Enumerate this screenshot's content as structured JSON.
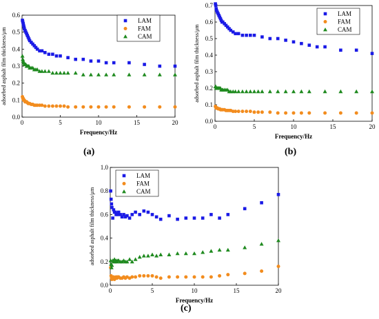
{
  "caption_labels": [
    "(a)",
    "(b)",
    "(c)"
  ],
  "chart_data": [
    {
      "type": "scatter",
      "xlabel": "Frequency/Hz",
      "ylabel": "adsorbed asphalt film thickness/μm",
      "xlim": [
        0,
        20
      ],
      "ylim": [
        0,
        0.6
      ],
      "xticks": [
        0,
        5,
        10,
        15,
        20
      ],
      "yticks": [
        0.0,
        0.1,
        0.2,
        0.3,
        0.4,
        0.5,
        0.6
      ],
      "grid": false,
      "legend_position": "top-right",
      "series": [
        {
          "name": "LAM",
          "color": "#1a1ae6",
          "marker": "square",
          "x": [
            0.05,
            0.1,
            0.15,
            0.2,
            0.25,
            0.3,
            0.4,
            0.5,
            0.6,
            0.7,
            0.8,
            0.9,
            1.0,
            1.2,
            1.4,
            1.6,
            1.8,
            2.0,
            2.3,
            2.6,
            3.0,
            3.5,
            4.0,
            4.5,
            5.0,
            6.0,
            7.0,
            8.0,
            9.0,
            10.0,
            11.0,
            12.0,
            14.0,
            16.0,
            18.0,
            20.0
          ],
          "y": [
            0.57,
            0.56,
            0.55,
            0.54,
            0.53,
            0.52,
            0.51,
            0.5,
            0.49,
            0.48,
            0.47,
            0.46,
            0.45,
            0.44,
            0.43,
            0.42,
            0.41,
            0.4,
            0.39,
            0.39,
            0.38,
            0.37,
            0.37,
            0.36,
            0.36,
            0.35,
            0.34,
            0.34,
            0.33,
            0.33,
            0.32,
            0.32,
            0.32,
            0.31,
            0.3,
            0.3
          ]
        },
        {
          "name": "FAM",
          "color": "#f28c1e",
          "marker": "circle",
          "x": [
            0.05,
            0.1,
            0.15,
            0.2,
            0.3,
            0.4,
            0.5,
            0.6,
            0.7,
            0.8,
            0.9,
            1.0,
            1.2,
            1.4,
            1.6,
            1.8,
            2.0,
            2.3,
            2.6,
            3.0,
            3.5,
            4.0,
            4.5,
            5.0,
            5.5,
            6.0,
            7.0,
            8.0,
            9.0,
            10.0,
            11.0,
            12.0,
            14.0,
            16.0,
            18.0,
            20.0
          ],
          "y": [
            0.12,
            0.11,
            0.11,
            0.1,
            0.1,
            0.09,
            0.09,
            0.09,
            0.085,
            0.08,
            0.08,
            0.08,
            0.075,
            0.075,
            0.07,
            0.07,
            0.07,
            0.07,
            0.07,
            0.065,
            0.065,
            0.065,
            0.065,
            0.065,
            0.065,
            0.06,
            0.06,
            0.06,
            0.06,
            0.06,
            0.06,
            0.06,
            0.06,
            0.06,
            0.06,
            0.06
          ]
        },
        {
          "name": "CAM",
          "color": "#1f8a1f",
          "marker": "triangle",
          "x": [
            0.05,
            0.1,
            0.15,
            0.2,
            0.3,
            0.4,
            0.5,
            0.6,
            0.7,
            0.8,
            0.9,
            1.0,
            1.2,
            1.4,
            1.6,
            1.8,
            2.0,
            2.3,
            2.6,
            3.0,
            3.5,
            4.0,
            4.5,
            5.0,
            5.5,
            6.0,
            7.0,
            8.0,
            9.0,
            10.0,
            11.0,
            12.0,
            14.0,
            16.0,
            18.0,
            20.0
          ],
          "y": [
            0.36,
            0.34,
            0.33,
            0.32,
            0.31,
            0.31,
            0.31,
            0.3,
            0.3,
            0.3,
            0.3,
            0.29,
            0.29,
            0.29,
            0.28,
            0.28,
            0.28,
            0.27,
            0.27,
            0.27,
            0.27,
            0.26,
            0.26,
            0.26,
            0.26,
            0.26,
            0.26,
            0.25,
            0.25,
            0.25,
            0.25,
            0.25,
            0.25,
            0.25,
            0.25,
            0.25
          ]
        }
      ]
    },
    {
      "type": "scatter",
      "xlabel": "Frequency/Hz",
      "ylabel": "adsorbed asphalt film thickness/μm",
      "xlim": [
        0,
        20
      ],
      "ylim": [
        0,
        0.7
      ],
      "xticks": [
        0,
        5,
        10,
        15,
        20
      ],
      "yticks": [
        0.0,
        0.1,
        0.2,
        0.3,
        0.4,
        0.5,
        0.6,
        0.7
      ],
      "grid": false,
      "legend_position": "top-right",
      "series": [
        {
          "name": "LAM",
          "color": "#1a1ae6",
          "marker": "square",
          "x": [
            0.05,
            0.1,
            0.15,
            0.2,
            0.3,
            0.4,
            0.5,
            0.6,
            0.7,
            0.8,
            0.9,
            1.0,
            1.2,
            1.4,
            1.6,
            1.8,
            2.0,
            2.3,
            2.6,
            3.0,
            3.5,
            4.0,
            4.5,
            5.0,
            6.0,
            7.0,
            8.0,
            9.0,
            10.0,
            11.0,
            12.0,
            13.0,
            14.0,
            16.0,
            18.0,
            20.0
          ],
          "y": [
            0.71,
            0.7,
            0.68,
            0.67,
            0.66,
            0.65,
            0.64,
            0.63,
            0.62,
            0.61,
            0.6,
            0.6,
            0.59,
            0.58,
            0.57,
            0.56,
            0.55,
            0.54,
            0.53,
            0.53,
            0.52,
            0.52,
            0.52,
            0.52,
            0.51,
            0.5,
            0.5,
            0.49,
            0.48,
            0.47,
            0.46,
            0.45,
            0.45,
            0.43,
            0.43,
            0.41
          ]
        },
        {
          "name": "FAM",
          "color": "#f28c1e",
          "marker": "circle",
          "x": [
            0.05,
            0.1,
            0.15,
            0.2,
            0.3,
            0.4,
            0.5,
            0.6,
            0.7,
            0.8,
            0.9,
            1.0,
            1.2,
            1.4,
            1.6,
            1.8,
            2.0,
            2.3,
            2.6,
            3.0,
            3.5,
            4.0,
            4.5,
            5.0,
            5.5,
            6.0,
            7.0,
            8.0,
            9.0,
            10.0,
            11.0,
            12.0,
            14.0,
            16.0,
            18.0,
            20.0
          ],
          "y": [
            0.09,
            0.085,
            0.08,
            0.08,
            0.08,
            0.075,
            0.075,
            0.075,
            0.07,
            0.07,
            0.07,
            0.07,
            0.07,
            0.065,
            0.065,
            0.065,
            0.065,
            0.06,
            0.06,
            0.06,
            0.06,
            0.06,
            0.06,
            0.055,
            0.055,
            0.055,
            0.055,
            0.05,
            0.05,
            0.05,
            0.05,
            0.05,
            0.05,
            0.05,
            0.05,
            0.05
          ]
        },
        {
          "name": "CAM",
          "color": "#1f8a1f",
          "marker": "triangle",
          "x": [
            0.05,
            0.1,
            0.15,
            0.2,
            0.3,
            0.4,
            0.5,
            0.6,
            0.7,
            0.8,
            0.9,
            1.0,
            1.2,
            1.4,
            1.6,
            1.8,
            2.0,
            2.3,
            2.6,
            3.0,
            3.5,
            4.0,
            4.5,
            5.0,
            5.5,
            6.0,
            7.0,
            8.0,
            9.0,
            10.0,
            11.0,
            12.0,
            14.0,
            16.0,
            18.0,
            20.0
          ],
          "y": [
            0.21,
            0.21,
            0.2,
            0.2,
            0.2,
            0.2,
            0.2,
            0.2,
            0.2,
            0.19,
            0.19,
            0.19,
            0.19,
            0.19,
            0.19,
            0.18,
            0.18,
            0.18,
            0.18,
            0.18,
            0.18,
            0.18,
            0.18,
            0.18,
            0.18,
            0.18,
            0.18,
            0.18,
            0.18,
            0.18,
            0.18,
            0.18,
            0.18,
            0.18,
            0.18,
            0.18
          ]
        }
      ]
    },
    {
      "type": "scatter",
      "xlabel": "Frequency/Hz",
      "ylabel": "adsorbed asphalt film thickness/μm",
      "xlim": [
        0,
        20
      ],
      "ylim": [
        0,
        1.0
      ],
      "xticks": [
        0,
        5,
        10,
        15,
        20
      ],
      "yticks": [
        0.0,
        0.2,
        0.4,
        0.6,
        0.8,
        1.0
      ],
      "grid": false,
      "legend_position": "top-left",
      "series": [
        {
          "name": "LAM",
          "color": "#1a1ae6",
          "marker": "square",
          "x": [
            0.05,
            0.1,
            0.15,
            0.2,
            0.3,
            0.4,
            0.5,
            0.6,
            0.7,
            0.8,
            0.9,
            1.0,
            1.2,
            1.4,
            1.6,
            1.8,
            2.0,
            2.3,
            2.6,
            3.0,
            3.5,
            4.0,
            4.5,
            5.0,
            5.5,
            6.0,
            7.0,
            8.0,
            9.0,
            10.0,
            11.0,
            12.0,
            13.0,
            14.0,
            16.0,
            18.0,
            20.0
          ],
          "y": [
            0.8,
            0.73,
            0.69,
            0.66,
            0.57,
            0.64,
            0.62,
            0.62,
            0.6,
            0.61,
            0.6,
            0.62,
            0.6,
            0.58,
            0.6,
            0.58,
            0.59,
            0.57,
            0.6,
            0.62,
            0.6,
            0.63,
            0.62,
            0.6,
            0.58,
            0.56,
            0.59,
            0.56,
            0.57,
            0.57,
            0.57,
            0.6,
            0.57,
            0.6,
            0.65,
            0.7,
            0.77
          ]
        },
        {
          "name": "FAM",
          "color": "#f28c1e",
          "marker": "circle",
          "x": [
            0.05,
            0.1,
            0.15,
            0.2,
            0.3,
            0.4,
            0.5,
            0.6,
            0.7,
            0.8,
            0.9,
            1.0,
            1.2,
            1.4,
            1.6,
            1.8,
            2.0,
            2.3,
            2.6,
            3.0,
            3.5,
            4.0,
            4.5,
            5.0,
            5.5,
            6.0,
            7.0,
            8.0,
            9.0,
            10.0,
            11.0,
            12.0,
            13.0,
            14.0,
            16.0,
            18.0,
            20.0
          ],
          "y": [
            0.15,
            0.08,
            0.06,
            0.05,
            0.06,
            0.07,
            0.05,
            0.06,
            0.07,
            0.06,
            0.07,
            0.07,
            0.06,
            0.06,
            0.07,
            0.06,
            0.07,
            0.06,
            0.07,
            0.07,
            0.08,
            0.08,
            0.08,
            0.08,
            0.07,
            0.06,
            0.07,
            0.07,
            0.07,
            0.07,
            0.07,
            0.07,
            0.08,
            0.09,
            0.1,
            0.12,
            0.16
          ]
        },
        {
          "name": "CAM",
          "color": "#1f8a1f",
          "marker": "triangle",
          "x": [
            0.05,
            0.1,
            0.15,
            0.2,
            0.3,
            0.4,
            0.5,
            0.6,
            0.7,
            0.8,
            0.9,
            1.0,
            1.2,
            1.4,
            1.6,
            1.8,
            2.0,
            2.3,
            2.6,
            3.0,
            3.5,
            4.0,
            4.5,
            5.0,
            5.5,
            6.0,
            7.0,
            8.0,
            9.0,
            10.0,
            11.0,
            12.0,
            13.0,
            14.0,
            16.0,
            18.0,
            20.0
          ],
          "y": [
            0.21,
            0.18,
            0.15,
            0.17,
            0.21,
            0.2,
            0.22,
            0.2,
            0.21,
            0.2,
            0.21,
            0.21,
            0.2,
            0.2,
            0.21,
            0.2,
            0.2,
            0.22,
            0.2,
            0.22,
            0.24,
            0.25,
            0.25,
            0.26,
            0.25,
            0.26,
            0.26,
            0.27,
            0.27,
            0.27,
            0.28,
            0.29,
            0.3,
            0.3,
            0.32,
            0.35,
            0.38
          ]
        }
      ]
    }
  ]
}
